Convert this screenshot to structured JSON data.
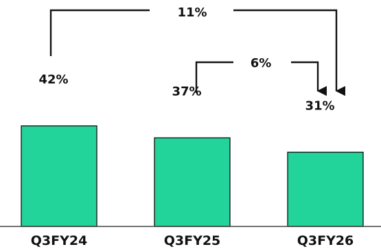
{
  "chart_data": {
    "type": "bar",
    "categories": [
      "Q3FY24",
      "Q3FY25",
      "Q3FY26"
    ],
    "values": [
      42,
      37,
      31
    ],
    "value_labels": [
      "42%",
      "37%",
      "31%"
    ],
    "ylim": [
      0,
      100
    ],
    "grid": false,
    "bar_color": "#22d39a",
    "annotations": [
      {
        "label": "11%",
        "from": "Q3FY24",
        "to": "Q3FY26"
      },
      {
        "label": "6%",
        "from": "Q3FY25",
        "to": "Q3FY26"
      }
    ]
  }
}
